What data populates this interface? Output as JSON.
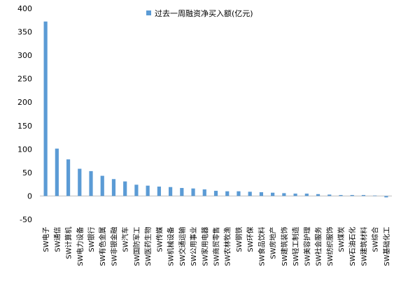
{
  "chart_data": {
    "type": "bar",
    "title": "",
    "xlabel": "",
    "ylabel": "",
    "ylim": [
      -50,
      400
    ],
    "yticks": [
      -50,
      0,
      50,
      100,
      150,
      200,
      250,
      300,
      350,
      400
    ],
    "grid": false,
    "legend": {
      "position": "top-right"
    },
    "categories": [
      "SW电子",
      "SW通信",
      "SW计算机",
      "SW电力设备",
      "SW银行",
      "SW有色金属",
      "SW非银金融",
      "SW汽车",
      "SW国防军工",
      "SW医药生物",
      "SW传媒",
      "SW机械设备",
      "SW交通运输",
      "SW公用事业",
      "SW家用电器",
      "SW商贸零售",
      "SW农林牧渔",
      "SW钢铁",
      "SW环保",
      "SW食品饮料",
      "SW房地产",
      "SW建筑装饰",
      "SW轻工制造",
      "SW美容护理",
      "SW社会服务",
      "SW纺织服饰",
      "SW煤炭",
      "SW石油石化",
      "SW建筑材料",
      "SW综合",
      "SW基础化工"
    ],
    "series": [
      {
        "name": "过去一周融资净买入额(亿元)",
        "color": "#5b9bd5",
        "values": [
          372,
          101,
          78,
          58,
          53,
          43,
          36,
          31,
          24,
          22,
          20,
          19,
          17,
          16,
          14,
          11,
          10,
          10,
          9,
          8,
          7,
          6,
          5,
          5,
          4,
          3,
          2,
          2,
          2,
          1,
          -3
        ]
      }
    ]
  }
}
